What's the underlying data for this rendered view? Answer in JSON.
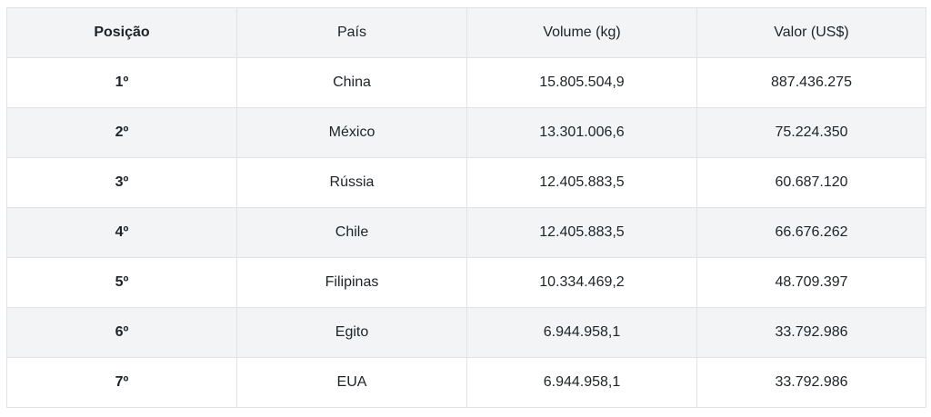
{
  "table": {
    "headers": [
      "Posição",
      "País",
      "Volume (kg)",
      "Valor (US$)"
    ],
    "rows": [
      [
        "1º",
        "China",
        "15.805.504,9",
        "887.436.275"
      ],
      [
        "2º",
        "México",
        "13.301.006,6",
        "75.224.350"
      ],
      [
        "3º",
        "Rússia",
        "12.405.883,5",
        "60.687.120"
      ],
      [
        "4º",
        "Chile",
        "12.405.883,5",
        "66.676.262"
      ],
      [
        "5º",
        "Filipinas",
        "10.334.469,2",
        "48.709.397"
      ],
      [
        "6º",
        "Egito",
        "6.944.958,1",
        "33.792.986"
      ],
      [
        "7º",
        "EUA",
        "6.944.958,1",
        "33.792.986"
      ]
    ]
  },
  "colors": {
    "shaded_row": "#f3f4f5",
    "plain_row": "#ffffff",
    "border": "#e1e2e4",
    "text": "#1d2327"
  }
}
